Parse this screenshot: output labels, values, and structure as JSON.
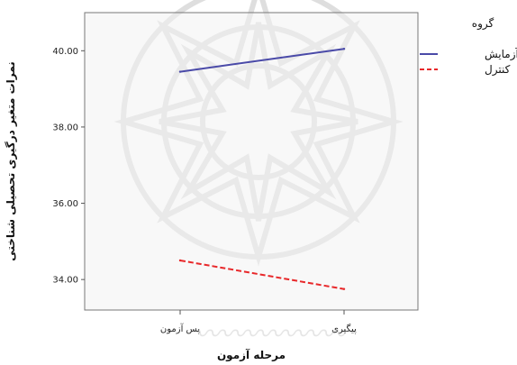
{
  "chart_data": {
    "type": "line",
    "xlabel": "مرحله آزمون",
    "ylabel": "نمرات متغیر درگیری تحصیلی شناختی",
    "categories": [
      "پس آزمون",
      "پیگیری"
    ],
    "y_ticks": [
      "34.00",
      "36.00",
      "38.00",
      "40.00"
    ],
    "ylim": [
      33.2,
      41.0
    ],
    "grid": false,
    "legend": {
      "title": "گروه",
      "position": "right"
    },
    "series": [
      {
        "name": "آزمایش",
        "values": [
          39.45,
          40.05
        ],
        "color": "#4a4aa8",
        "dash": "solid"
      },
      {
        "name": "کنترل",
        "values": [
          34.5,
          33.75
        ],
        "color": "#e8282a",
        "dash": "dashed"
      }
    ]
  }
}
